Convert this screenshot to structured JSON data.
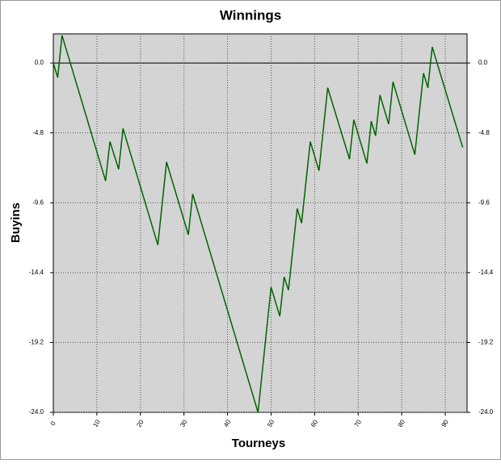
{
  "chart_data": {
    "type": "line",
    "title": "Winnings",
    "x_label": "Tourneys",
    "y_label": "Buyins",
    "x": [
      0,
      1,
      2,
      12,
      13,
      15,
      16,
      24,
      26,
      31,
      32,
      47,
      50,
      52,
      53,
      54,
      56,
      57,
      59,
      61,
      63,
      68,
      69,
      72,
      73,
      74,
      75,
      77,
      78,
      83,
      85,
      86,
      87,
      94
    ],
    "series": [
      {
        "name": "Winnings",
        "color": "#006400",
        "values": [
          0,
          -1.0,
          1.9,
          -8.1,
          -5.4,
          -7.3,
          -4.5,
          -12.5,
          -6.8,
          -11.8,
          -9.0,
          -24.0,
          -15.4,
          -17.4,
          -14.7,
          -15.6,
          -10.0,
          -11.0,
          -5.4,
          -7.4,
          -1.7,
          -6.6,
          -3.9,
          -6.9,
          -4.0,
          -5.0,
          -2.2,
          -4.2,
          -1.3,
          -6.3,
          -0.7,
          -1.7,
          1.1,
          -5.8
        ]
      }
    ],
    "xlim": [
      0,
      95
    ],
    "xticks": [
      0,
      10,
      20,
      30,
      40,
      50,
      60,
      70,
      80,
      90
    ],
    "ylim": [
      -24,
      2
    ],
    "yticks": [
      {
        "value": 0,
        "label": "0.0"
      },
      -4.8,
      -9.6,
      -14.4,
      -19.2,
      {
        "value": -24,
        "label": "-24.0"
      }
    ],
    "grid": true
  }
}
